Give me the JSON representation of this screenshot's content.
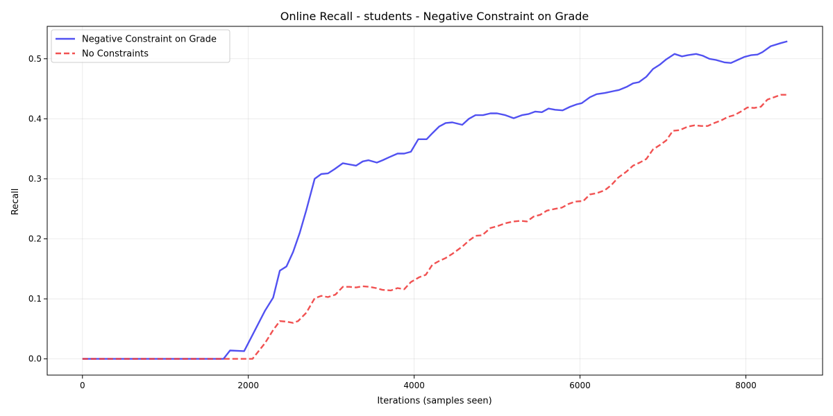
{
  "chart_data": {
    "type": "line",
    "title": "Online Recall - students - Negative Constraint on Grade",
    "xlabel": "Iterations (samples seen)",
    "ylabel": "Recall",
    "xlim": [
      -425,
      8925
    ],
    "ylim": [
      -0.027,
      0.554
    ],
    "xticks": [
      0,
      2000,
      4000,
      6000,
      8000
    ],
    "xtick_labels": [
      "0",
      "2000",
      "4000",
      "6000",
      "8000"
    ],
    "yticks": [
      0.0,
      0.1,
      0.2,
      0.3,
      0.4,
      0.5
    ],
    "ytick_labels": [
      "0.0",
      "0.1",
      "0.2",
      "0.3",
      "0.4",
      "0.5"
    ],
    "grid": true,
    "legend_position": "upper-left",
    "series": [
      {
        "name": "Negative Constraint on Grade",
        "color": "#3333ee",
        "style": "solid",
        "x": [
          0,
          100,
          200,
          300,
          400,
          500,
          600,
          700,
          800,
          900,
          1000,
          1100,
          1200,
          1300,
          1400,
          1500,
          1600,
          1700,
          1780,
          1950,
          2040,
          2200,
          2300,
          2380,
          2460,
          2540,
          2620,
          2700,
          2800,
          2880,
          2960,
          3040,
          3140,
          3300,
          3380,
          3450,
          3550,
          3620,
          3700,
          3800,
          3880,
          3960,
          4050,
          4150,
          4220,
          4300,
          4380,
          4460,
          4580,
          4660,
          4740,
          4830,
          4920,
          5000,
          5100,
          5200,
          5300,
          5380,
          5460,
          5540,
          5620,
          5700,
          5790,
          5880,
          5960,
          6020,
          6120,
          6200,
          6300,
          6400,
          6470,
          6560,
          6640,
          6710,
          6800,
          6880,
          6960,
          7040,
          7140,
          7230,
          7300,
          7400,
          7480,
          7560,
          7640,
          7740,
          7820,
          7900,
          7980,
          8060,
          8140,
          8200,
          8300,
          8420,
          8500
        ],
        "y": [
          0.0,
          0.0,
          0.0,
          0.0,
          0.0,
          0.0,
          0.0,
          0.0,
          0.0,
          0.0,
          0.0,
          0.0,
          0.0,
          0.0,
          0.0,
          0.0,
          0.0,
          0.0,
          0.014,
          0.013,
          0.037,
          0.08,
          0.102,
          0.147,
          0.154,
          0.178,
          0.21,
          0.248,
          0.3,
          0.308,
          0.309,
          0.316,
          0.326,
          0.322,
          0.329,
          0.331,
          0.327,
          0.331,
          0.336,
          0.342,
          0.342,
          0.345,
          0.366,
          0.366,
          0.376,
          0.387,
          0.393,
          0.394,
          0.39,
          0.4,
          0.406,
          0.406,
          0.409,
          0.409,
          0.406,
          0.401,
          0.406,
          0.408,
          0.412,
          0.411,
          0.417,
          0.415,
          0.414,
          0.42,
          0.424,
          0.426,
          0.436,
          0.441,
          0.443,
          0.446,
          0.448,
          0.453,
          0.459,
          0.461,
          0.47,
          0.483,
          0.49,
          0.499,
          0.508,
          0.504,
          0.506,
          0.508,
          0.505,
          0.5,
          0.498,
          0.494,
          0.493,
          0.498,
          0.503,
          0.506,
          0.507,
          0.511,
          0.521,
          0.526,
          0.529
        ]
      },
      {
        "name": "No Constraints",
        "color": "#ee3333",
        "style": "dashed",
        "x": [
          0,
          200,
          400,
          600,
          800,
          1000,
          1200,
          1400,
          1600,
          1800,
          2000,
          2050,
          2200,
          2300,
          2380,
          2460,
          2540,
          2600,
          2700,
          2800,
          2880,
          2960,
          3050,
          3140,
          3220,
          3300,
          3380,
          3460,
          3540,
          3620,
          3720,
          3800,
          3880,
          3960,
          4060,
          4140,
          4220,
          4300,
          4380,
          4460,
          4580,
          4660,
          4740,
          4820,
          4920,
          5000,
          5100,
          5200,
          5280,
          5360,
          5440,
          5520,
          5600,
          5700,
          5780,
          5860,
          5940,
          6040,
          6120,
          6200,
          6300,
          6380,
          6460,
          6560,
          6640,
          6720,
          6800,
          6880,
          6960,
          7040,
          7120,
          7200,
          7300,
          7380,
          7460,
          7540,
          7620,
          7700,
          7780,
          7860,
          7940,
          8020,
          8100,
          8180,
          8260,
          8340,
          8420,
          8500
        ],
        "y": [
          0.0,
          0.0,
          0.0,
          0.0,
          0.0,
          0.0,
          0.0,
          0.0,
          0.0,
          0.0,
          0.0,
          0.0,
          0.026,
          0.048,
          0.063,
          0.062,
          0.06,
          0.063,
          0.077,
          0.101,
          0.105,
          0.103,
          0.107,
          0.12,
          0.12,
          0.119,
          0.121,
          0.12,
          0.118,
          0.115,
          0.114,
          0.118,
          0.116,
          0.128,
          0.136,
          0.14,
          0.157,
          0.163,
          0.168,
          0.175,
          0.187,
          0.197,
          0.205,
          0.206,
          0.218,
          0.221,
          0.226,
          0.229,
          0.23,
          0.229,
          0.237,
          0.24,
          0.247,
          0.25,
          0.252,
          0.258,
          0.262,
          0.263,
          0.274,
          0.276,
          0.281,
          0.29,
          0.302,
          0.312,
          0.322,
          0.327,
          0.333,
          0.349,
          0.356,
          0.364,
          0.38,
          0.381,
          0.387,
          0.389,
          0.388,
          0.388,
          0.393,
          0.397,
          0.403,
          0.406,
          0.412,
          0.419,
          0.418,
          0.42,
          0.432,
          0.436,
          0.44,
          0.44
        ]
      }
    ]
  }
}
